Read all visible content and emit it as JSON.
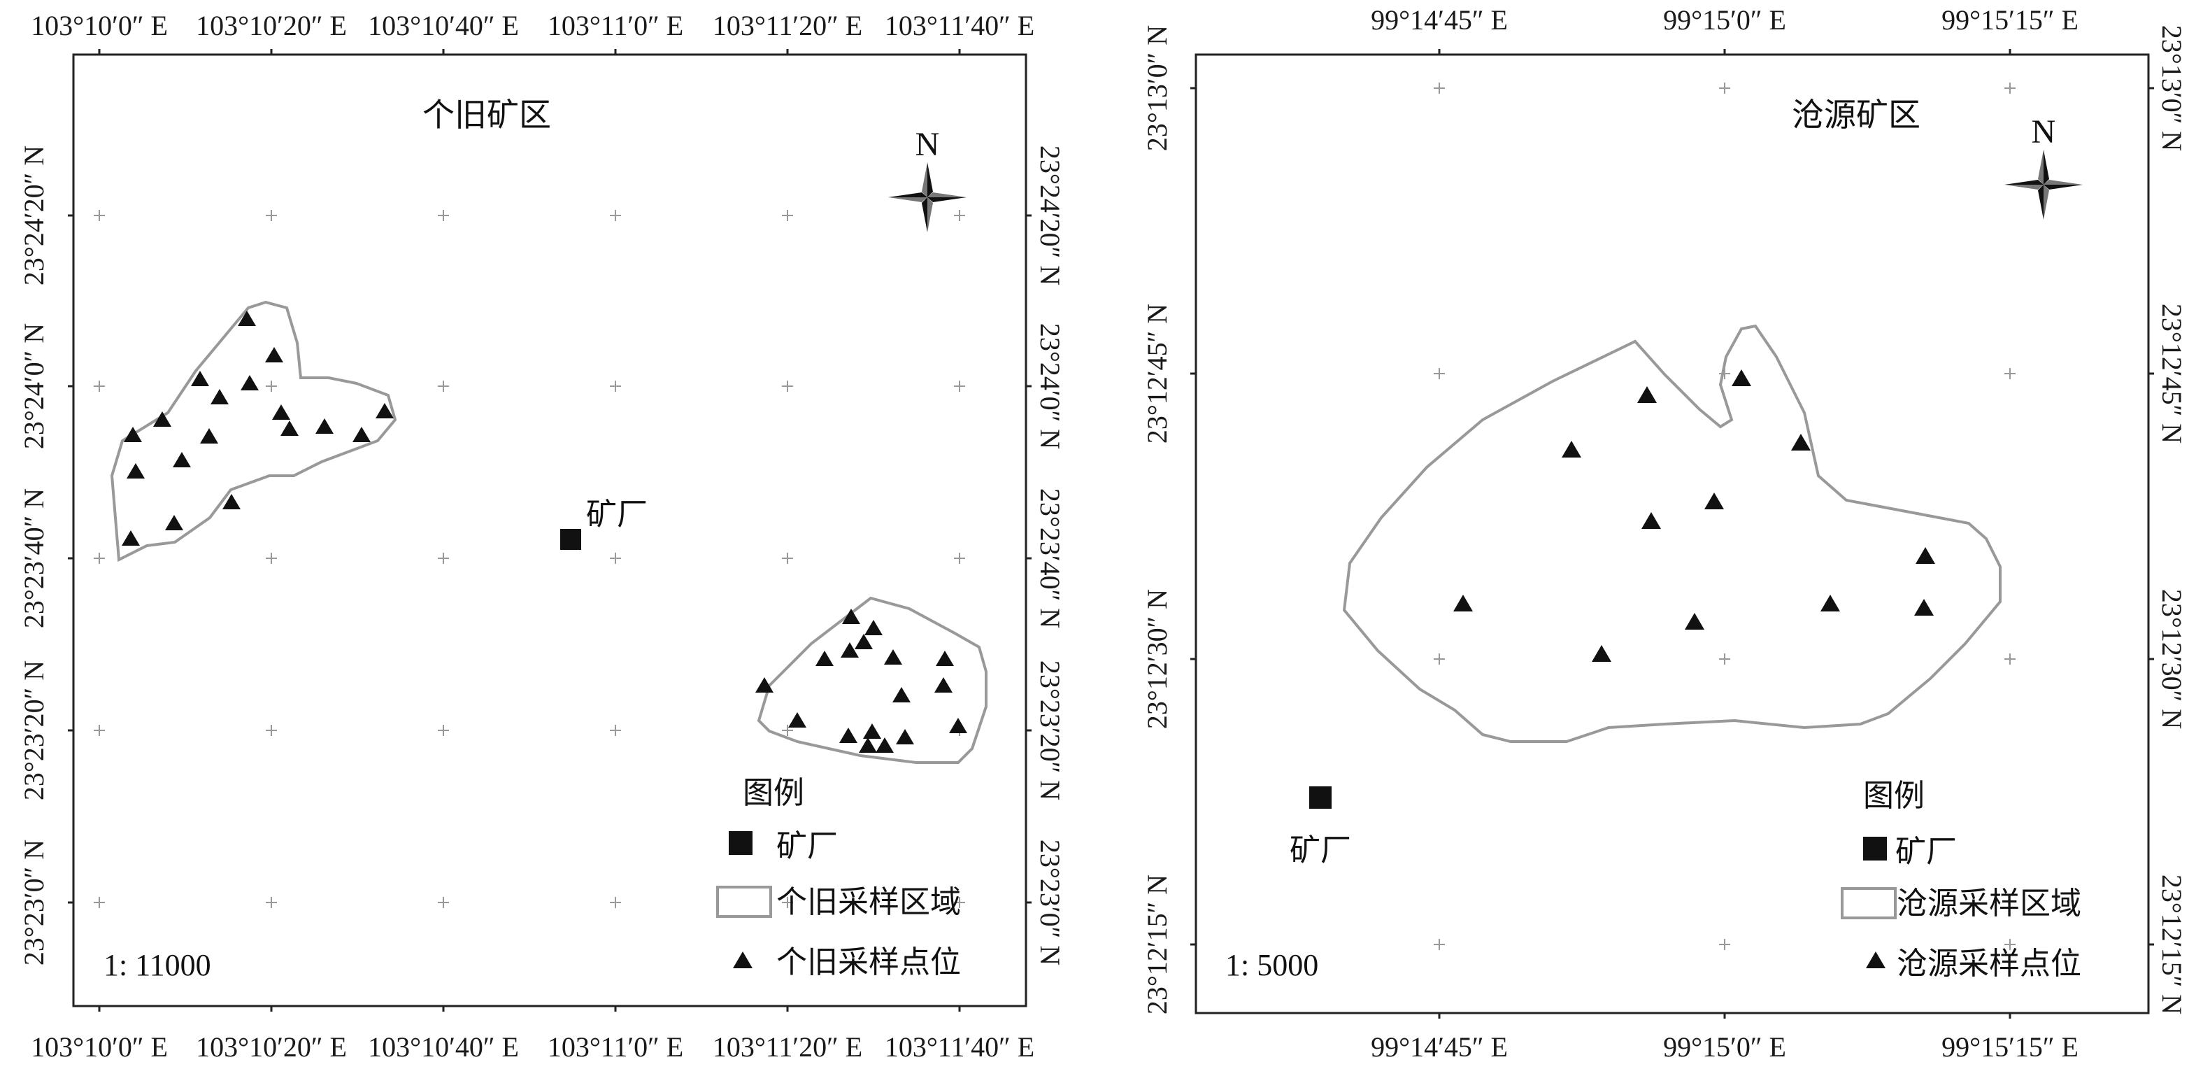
{
  "maps": [
    {
      "title": "个旧矿区",
      "north_label": "N",
      "scale": "1: 11000",
      "lon_ticks": [
        "103°10′0″ E",
        "103°10′20″ E",
        "103°10′40″ E",
        "103°11′0″ E",
        "103°11′20″ E",
        "103°11′40″ E"
      ],
      "lat_ticks": [
        "23°23′0″ N",
        "23°23′20″ N",
        "23°23′40″ N",
        "23°24′0″ N",
        "23°24′20″ N"
      ],
      "factory_label": "矿厂",
      "legend": {
        "title": "图例",
        "factory": "矿厂",
        "area": "个旧采样区域",
        "points": "个旧采样点位"
      }
    },
    {
      "title": "沧源矿区",
      "north_label": "N",
      "scale": "1: 5000",
      "lon_ticks": [
        "99°14′45″ E",
        "99°15′0″ E",
        "99°15′15″ E"
      ],
      "lat_ticks": [
        "23°12′15″ N",
        "23°12′30″ N",
        "23°12′45″ N",
        "23°13′0″ N"
      ],
      "factory_label": "矿厂",
      "legend": {
        "title": "图例",
        "factory": "矿厂",
        "area": "沧源采样区域",
        "points": "沧源采样点位"
      }
    }
  ]
}
